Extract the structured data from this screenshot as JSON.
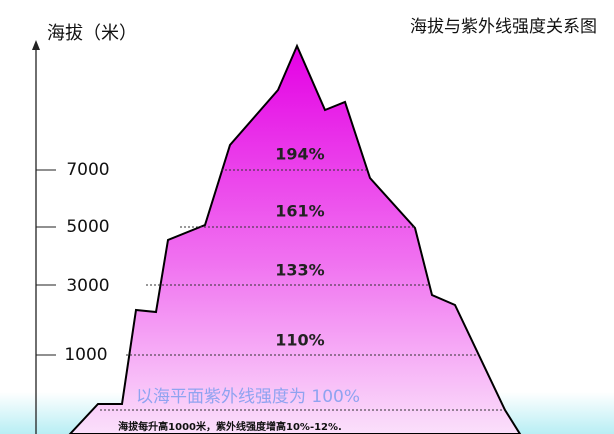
{
  "title": "海拔与紫外线强度关系图",
  "axis": {
    "label": "海拔（米）",
    "ticks": [
      "7000",
      "5000",
      "3000",
      "1000"
    ]
  },
  "levels": [
    "194%",
    "161%",
    "133%",
    "110%"
  ],
  "baseline": "以海平面紫外线强度为 100%",
  "footnote": "海拔每升高1000米，紫外线强度增高10%-12%."
}
